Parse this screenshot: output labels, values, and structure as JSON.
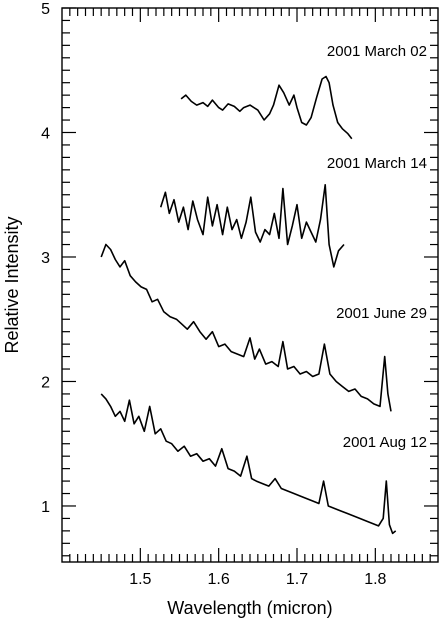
{
  "chart_data": {
    "type": "line",
    "xlabel": "Wavelength (micron)",
    "ylabel": "Relative Intensity",
    "xlim": [
      1.4,
      1.88
    ],
    "ylim": [
      0.55,
      5.0
    ],
    "xticks": [
      1.5,
      1.6,
      1.7,
      1.8
    ],
    "xtick_labels": [
      "1.5",
      "1.6",
      "1.7",
      "1.8"
    ],
    "yticks": [
      1,
      2,
      3,
      4,
      5
    ],
    "ytick_labels": [
      "1",
      "2",
      "3",
      "4",
      "5"
    ],
    "grid": false,
    "legend": "none",
    "series": [
      {
        "name": "2001 March 02",
        "x": [
          1.552,
          1.558,
          1.565,
          1.572,
          1.58,
          1.586,
          1.592,
          1.6,
          1.605,
          1.612,
          1.62,
          1.627,
          1.632,
          1.64,
          1.65,
          1.658,
          1.665,
          1.67,
          1.677,
          1.683,
          1.69,
          1.696,
          1.7,
          1.706,
          1.712,
          1.718,
          1.725,
          1.732,
          1.737,
          1.741,
          1.746,
          1.752,
          1.758,
          1.765,
          1.77
        ],
        "y": [
          4.27,
          4.3,
          4.25,
          4.22,
          4.24,
          4.21,
          4.26,
          4.2,
          4.18,
          4.23,
          4.21,
          4.17,
          4.2,
          4.22,
          4.18,
          4.1,
          4.15,
          4.22,
          4.38,
          4.32,
          4.22,
          4.3,
          4.2,
          4.08,
          4.06,
          4.12,
          4.28,
          4.43,
          4.45,
          4.4,
          4.22,
          4.08,
          4.03,
          3.99,
          3.95
        ]
      },
      {
        "name": "2001 March 14",
        "x": [
          1.526,
          1.532,
          1.537,
          1.543,
          1.549,
          1.555,
          1.561,
          1.567,
          1.573,
          1.58,
          1.586,
          1.592,
          1.598,
          1.605,
          1.611,
          1.617,
          1.623,
          1.629,
          1.635,
          1.641,
          1.647,
          1.653,
          1.659,
          1.665,
          1.671,
          1.677,
          1.682,
          1.688,
          1.694,
          1.7,
          1.706,
          1.712,
          1.718,
          1.724,
          1.73,
          1.736,
          1.741,
          1.747,
          1.753,
          1.76
        ],
        "y": [
          3.4,
          3.52,
          3.35,
          3.46,
          3.28,
          3.4,
          3.22,
          3.45,
          3.3,
          3.18,
          3.48,
          3.25,
          3.42,
          3.18,
          3.4,
          3.22,
          3.3,
          3.15,
          3.28,
          3.48,
          3.2,
          3.12,
          3.22,
          3.18,
          3.35,
          3.15,
          3.55,
          3.1,
          3.25,
          3.42,
          3.15,
          3.28,
          3.2,
          3.12,
          3.3,
          3.58,
          3.1,
          2.92,
          3.05,
          3.1
        ]
      },
      {
        "name": "2001 June 29",
        "x": [
          1.45,
          1.456,
          1.462,
          1.468,
          1.474,
          1.48,
          1.487,
          1.494,
          1.501,
          1.508,
          1.515,
          1.522,
          1.53,
          1.538,
          1.546,
          1.553,
          1.56,
          1.568,
          1.576,
          1.584,
          1.592,
          1.6,
          1.608,
          1.616,
          1.624,
          1.632,
          1.64,
          1.646,
          1.652,
          1.66,
          1.668,
          1.676,
          1.682,
          1.688,
          1.696,
          1.704,
          1.712,
          1.72,
          1.728,
          1.735,
          1.742,
          1.75,
          1.758,
          1.766,
          1.774,
          1.782,
          1.79,
          1.798,
          1.806,
          1.812,
          1.816,
          1.82
        ],
        "y": [
          3.0,
          3.1,
          3.06,
          2.98,
          2.92,
          2.97,
          2.85,
          2.8,
          2.76,
          2.74,
          2.64,
          2.66,
          2.56,
          2.52,
          2.5,
          2.46,
          2.42,
          2.48,
          2.4,
          2.34,
          2.4,
          2.28,
          2.3,
          2.24,
          2.22,
          2.2,
          2.35,
          2.18,
          2.26,
          2.14,
          2.16,
          2.12,
          2.32,
          2.1,
          2.12,
          2.06,
          2.08,
          2.04,
          2.06,
          2.3,
          2.06,
          2.0,
          1.96,
          1.92,
          1.94,
          1.88,
          1.86,
          1.82,
          1.8,
          2.2,
          1.9,
          1.76
        ]
      },
      {
        "name": "2001 Aug 12",
        "x": [
          1.45,
          1.456,
          1.462,
          1.468,
          1.474,
          1.48,
          1.486,
          1.492,
          1.498,
          1.505,
          1.512,
          1.519,
          1.526,
          1.533,
          1.54,
          1.548,
          1.556,
          1.564,
          1.572,
          1.58,
          1.588,
          1.596,
          1.604,
          1.612,
          1.62,
          1.628,
          1.636,
          1.642,
          1.648,
          1.656,
          1.664,
          1.672,
          1.68,
          1.688,
          1.696,
          1.704,
          1.712,
          1.72,
          1.728,
          1.734,
          1.74,
          1.748,
          1.756,
          1.764,
          1.772,
          1.78,
          1.788,
          1.796,
          1.804,
          1.81,
          1.814,
          1.818,
          1.822,
          1.826
        ],
        "y": [
          1.9,
          1.86,
          1.8,
          1.72,
          1.76,
          1.68,
          1.85,
          1.66,
          1.72,
          1.6,
          1.8,
          1.58,
          1.62,
          1.52,
          1.5,
          1.44,
          1.48,
          1.4,
          1.42,
          1.36,
          1.38,
          1.32,
          1.46,
          1.3,
          1.28,
          1.24,
          1.4,
          1.22,
          1.2,
          1.18,
          1.16,
          1.22,
          1.14,
          1.12,
          1.1,
          1.08,
          1.06,
          1.04,
          1.02,
          1.2,
          1.0,
          0.98,
          0.96,
          0.94,
          0.92,
          0.9,
          0.88,
          0.86,
          0.84,
          0.9,
          1.2,
          0.85,
          0.78,
          0.8
        ]
      }
    ]
  }
}
